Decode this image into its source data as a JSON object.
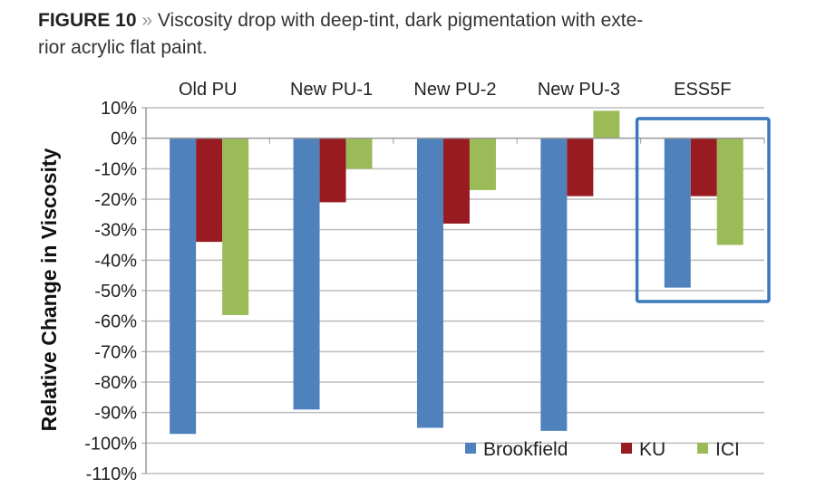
{
  "caption": {
    "label": "FIGURE 10",
    "separator": "»",
    "line1": "Viscosity drop with deep-tint, dark pigmentation with exte-",
    "line2": "rior acrylic flat paint."
  },
  "chart_data": {
    "type": "bar",
    "title": "",
    "xlabel": "",
    "ylabel": "Relative Change in Viscosity",
    "categories": [
      "Old PU",
      "New PU-1",
      "New PU-2",
      "New PU-3",
      "ESS5F"
    ],
    "category_axis_position": "top",
    "series": [
      {
        "name": "Brookfield",
        "color": "#4F81BD",
        "values": [
          -97,
          -89,
          -95,
          -96,
          -49
        ]
      },
      {
        "name": "KU",
        "color": "#981B21",
        "values": [
          -34,
          -21,
          -28,
          -19,
          -19
        ]
      },
      {
        "name": "ICI",
        "color": "#9BBB59",
        "values": [
          -58,
          -10,
          -17,
          9,
          -35
        ]
      }
    ],
    "ylim": [
      -110,
      10
    ],
    "yticks": [
      10,
      0,
      -10,
      -20,
      -30,
      -40,
      -50,
      -60,
      -70,
      -80,
      -90,
      -100,
      -110
    ],
    "ytick_format": "percent",
    "grid": true,
    "legend": "bottom-right",
    "highlight": {
      "category": "ESS5F",
      "color": "#3A78BE"
    }
  }
}
